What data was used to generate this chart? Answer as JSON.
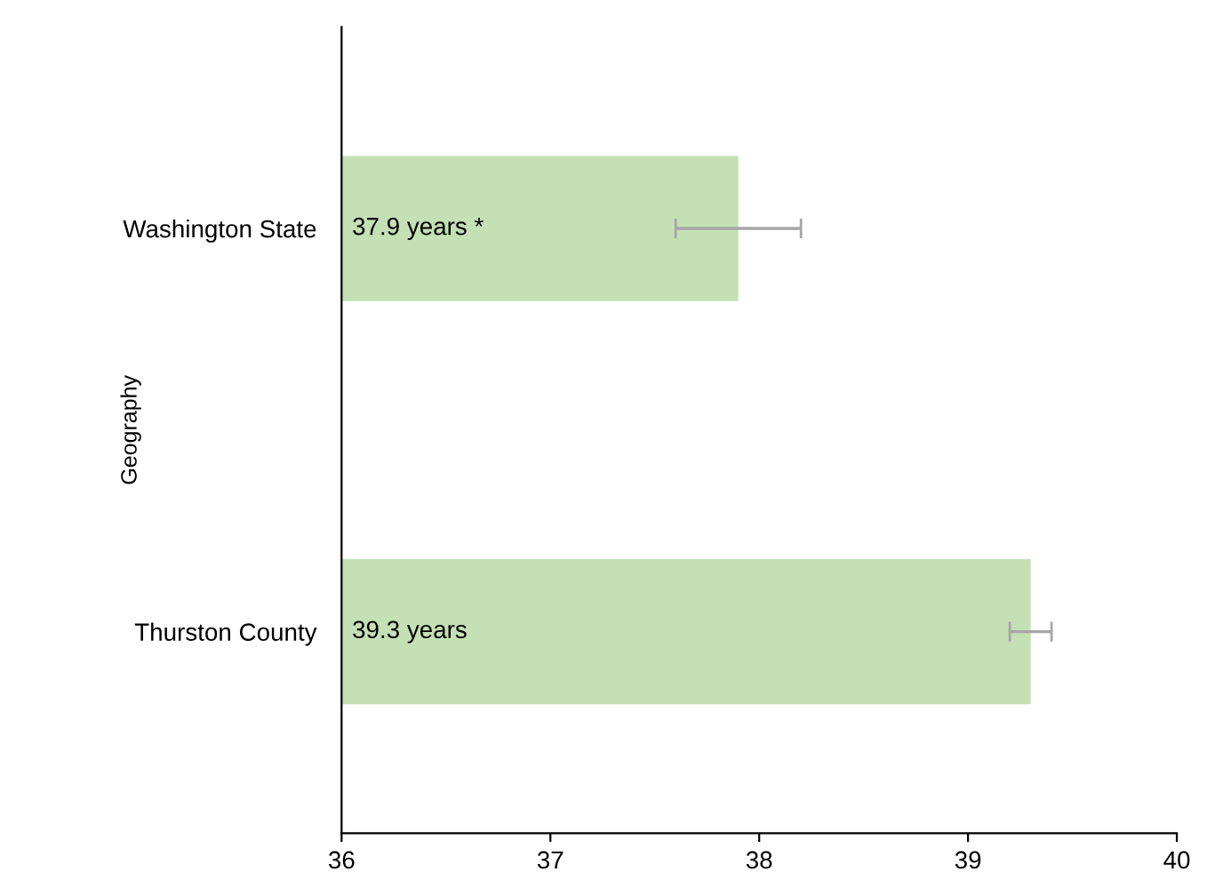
{
  "chart_data": {
    "type": "bar",
    "orientation": "horizontal",
    "ylabel": "Geography",
    "categories": [
      "Washington State",
      "Thurston County"
    ],
    "values": [
      37.9,
      39.3
    ],
    "errors": [
      [
        37.6,
        38.2
      ],
      [
        39.2,
        39.4
      ]
    ],
    "value_labels": [
      "37.9 years *",
      "39.3 years"
    ],
    "color": "#c5e0b4",
    "xlim": [
      36,
      40
    ],
    "xticks": [
      36,
      37,
      38,
      39,
      40
    ],
    "grid": false,
    "legend": false
  }
}
